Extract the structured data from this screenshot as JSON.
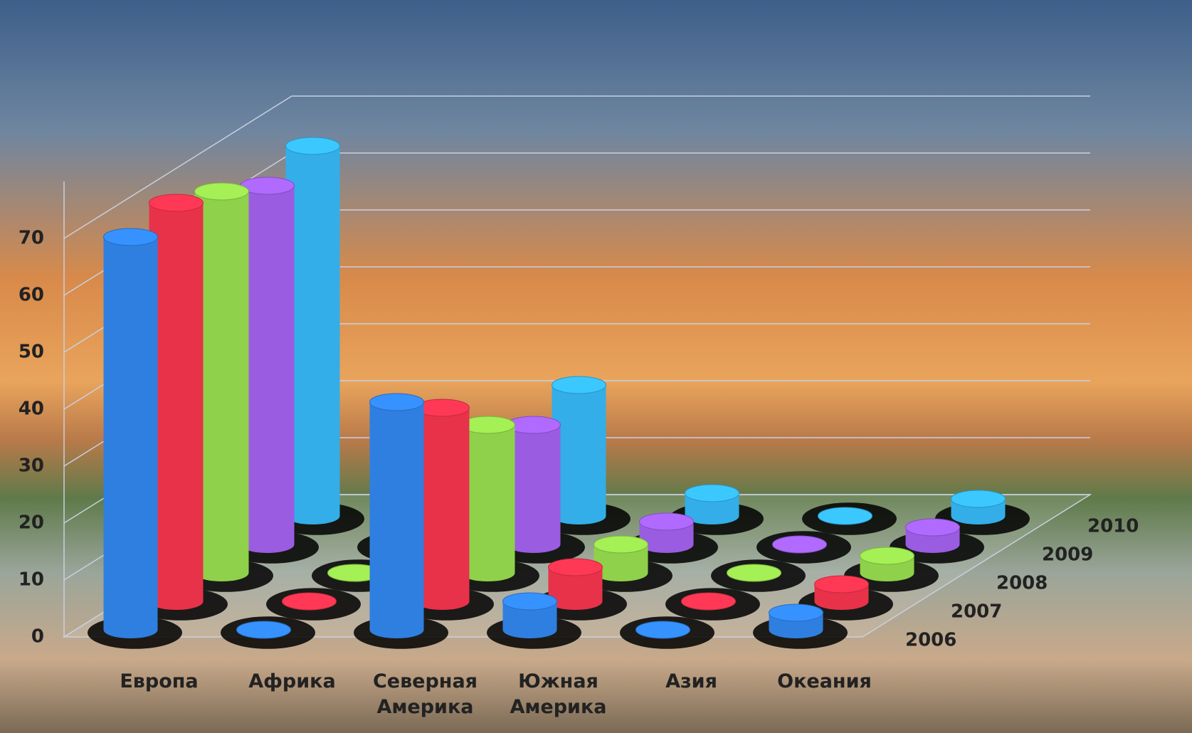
{
  "chart_data": {
    "type": "bar3d",
    "categories": [
      "Европа",
      "Африка",
      "Северная Америка",
      "Южная Америка",
      "Азия",
      "Океания"
    ],
    "series": [
      {
        "name": "2006",
        "color": "#2f7fe0",
        "values": [
          69,
          0,
          40,
          5,
          0,
          3
        ]
      },
      {
        "name": "2007",
        "color": "#e8324a",
        "values": [
          70,
          0,
          34,
          6,
          0,
          3
        ]
      },
      {
        "name": "2008",
        "color": "#8fd14a",
        "values": [
          67,
          0,
          26,
          5,
          0,
          3
        ]
      },
      {
        "name": "2009",
        "color": "#9a5ce0",
        "values": [
          63,
          0,
          21,
          4,
          0,
          3
        ]
      },
      {
        "name": "2010",
        "color": "#33aee8",
        "values": [
          65,
          0,
          23,
          4,
          0,
          3
        ]
      }
    ],
    "ylim": [
      0,
      80
    ],
    "yticks": [
      0,
      10,
      20,
      30,
      40,
      50,
      60,
      70
    ],
    "grid": true
  }
}
